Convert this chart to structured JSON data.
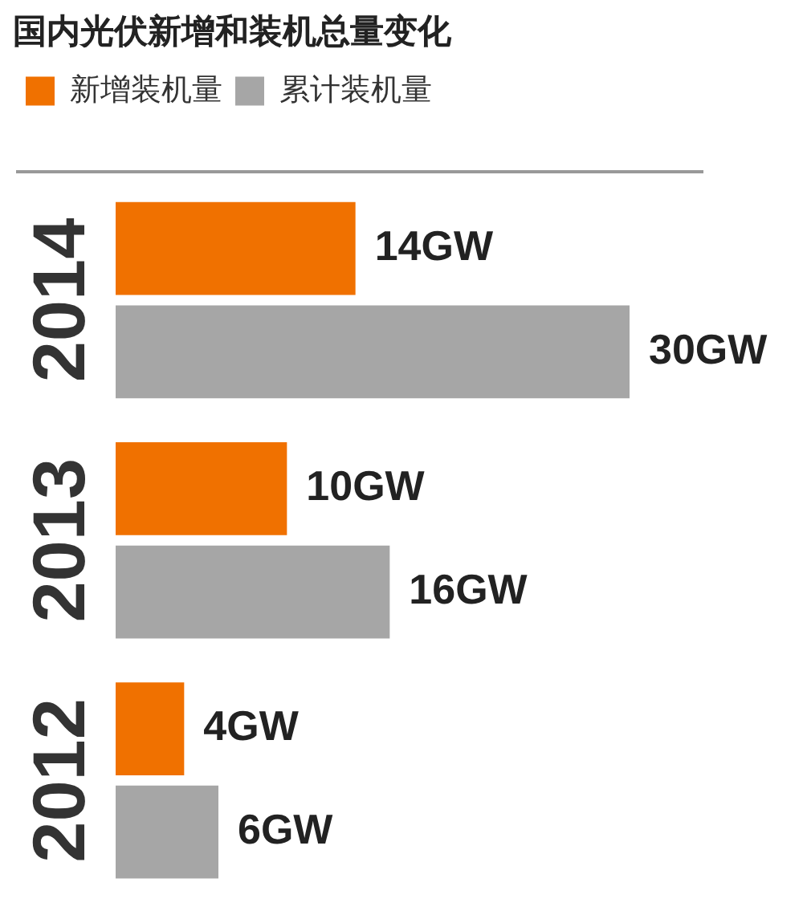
{
  "chart_data": {
    "type": "bar",
    "orientation": "horizontal",
    "title": "国内光伏新增和装机总量变化",
    "categories": [
      "2014",
      "2013",
      "2012"
    ],
    "legend": "top left",
    "series": [
      {
        "name": "新增装机量",
        "color": "#f07100",
        "values": [
          14,
          10,
          4
        ],
        "value_labels": [
          "14GW",
          "10GW",
          "4GW"
        ]
      },
      {
        "name": "累计装机量",
        "color": "#a6a6a6",
        "values": [
          30,
          16,
          6
        ],
        "value_labels": [
          "30GW",
          "16GW",
          "6GW"
        ]
      }
    ]
  }
}
